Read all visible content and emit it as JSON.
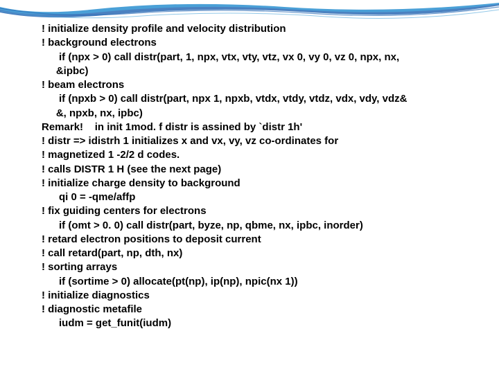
{
  "colors": {
    "wave_outer": "#2b6bb5",
    "wave_mid": "#4aa3d9",
    "wave_inner": "#ffffff",
    "text": "#000000",
    "background": "#ffffff"
  },
  "typography": {
    "font_family": "Trebuchet MS",
    "font_size_pt": 11,
    "font_weight": "bold",
    "line_height": 1.35
  },
  "lines": [
    "! initialize density profile and velocity distribution",
    "! background electrons",
    "      if (npx > 0) call distr(part, 1, npx, vtx, vty, vtz, vx 0, vy 0, vz 0, npx, nx,",
    "     &ipbc)",
    "! beam electrons",
    "      if (npxb > 0) call distr(part, npx 1, npxb, vtdx, vtdy, vtdz, vdx, vdy, vdz&",
    "     &, npxb, nx, ipbc)",
    "Remark!    in init 1mod. f distr is assined by `distr 1h'",
    "! distr => idistrh 1 initializes x and vx, vy, vz co-ordinates for",
    "! magnetized 1 -2/2 d codes.",
    "! calls DISTR 1 H (see the next page)",
    "! initialize charge density to background",
    "      qi 0 = -qme/affp",
    "! fix guiding centers for electrons",
    "      if (omt > 0. 0) call distr(part, byze, np, qbme, nx, ipbc, inorder)",
    "! retard electron positions to deposit current",
    "! call retard(part, np, dth, nx)",
    "! sorting arrays",
    "      if (sortime > 0) allocate(pt(np), ip(np), npic(nx 1))",
    "! initialize diagnostics",
    "! diagnostic metafile",
    "      iudm = get_funit(iudm)"
  ]
}
